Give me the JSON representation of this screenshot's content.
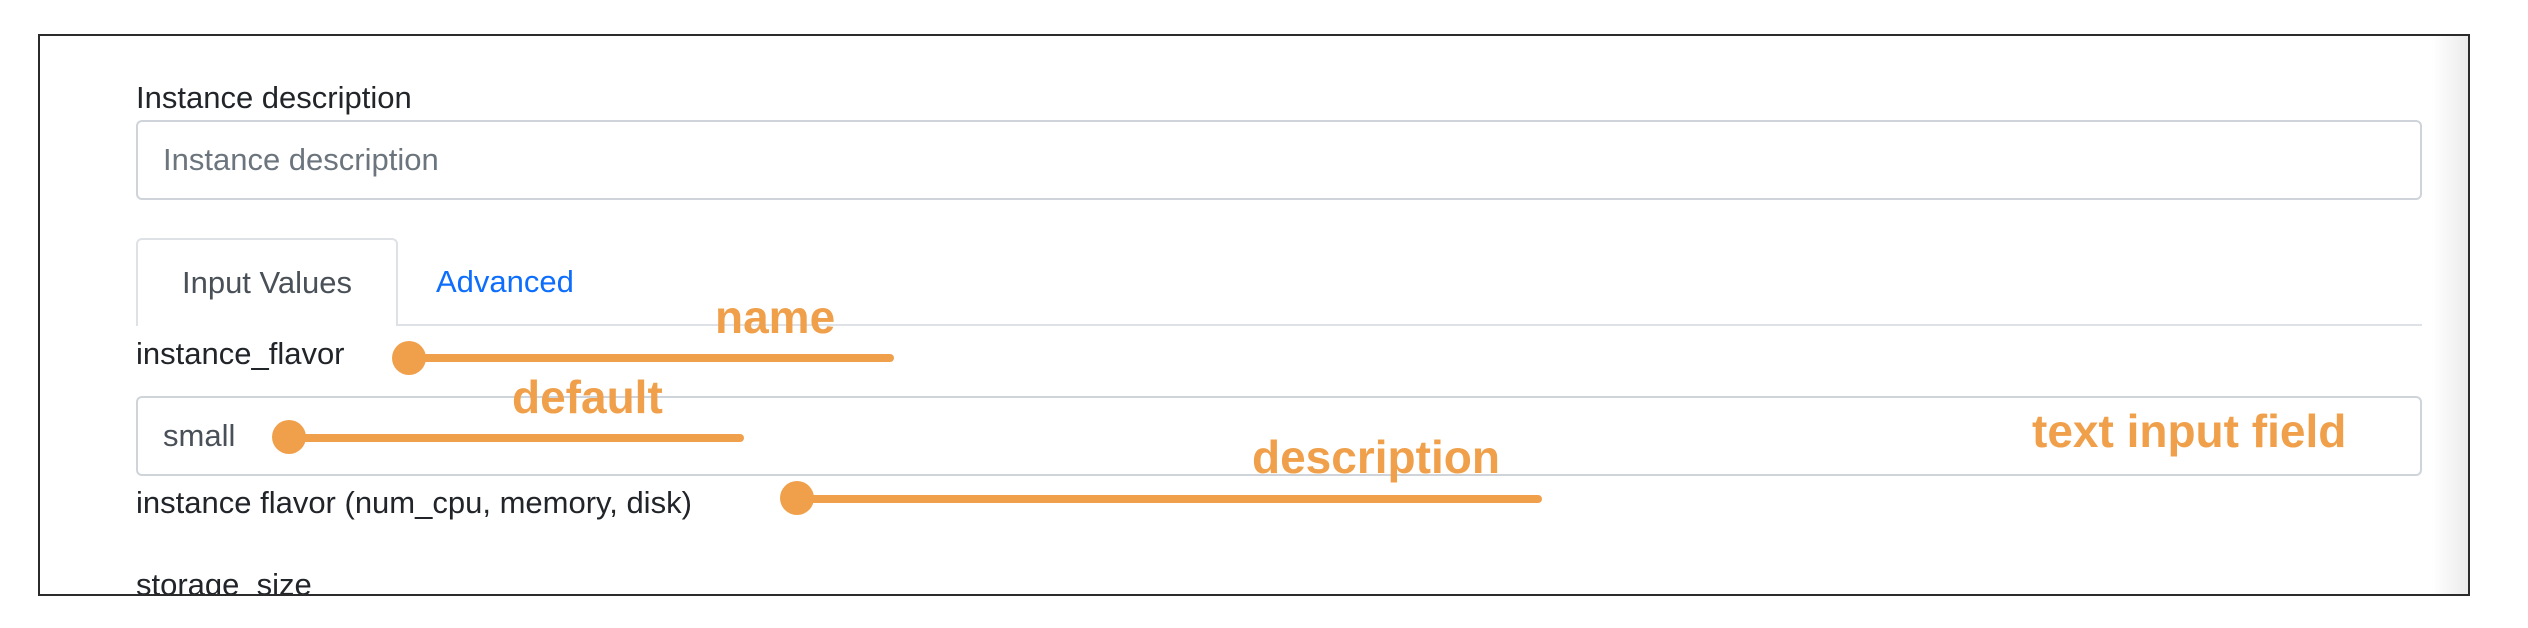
{
  "form": {
    "instance_description": {
      "label": "Instance description",
      "placeholder": "Instance description"
    },
    "tabs": [
      {
        "label": "Input Values",
        "active": true
      },
      {
        "label": "Advanced",
        "active": false
      }
    ],
    "fields": [
      {
        "name": "instance_flavor",
        "value": "small",
        "description": "instance flavor (num_cpu, memory, disk)"
      },
      {
        "name": "storage_size"
      }
    ]
  },
  "annotations": {
    "name": "name",
    "default": "default",
    "description": "description",
    "text_input_field": "text input field"
  },
  "colors": {
    "annotation": "#f0a04b",
    "link": "#0d6efd",
    "input_border": "#ced4da",
    "frame_border": "#2b2b2b"
  }
}
